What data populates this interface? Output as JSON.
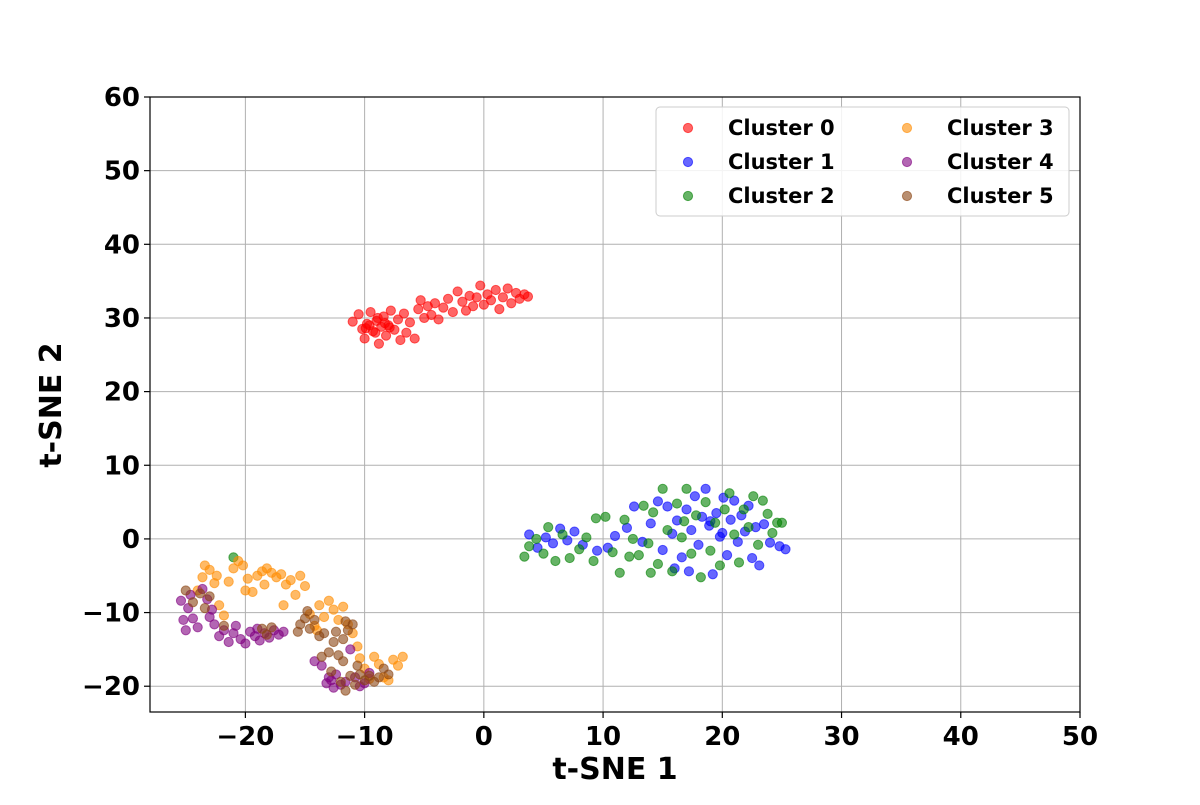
{
  "chart_data": {
    "type": "scatter",
    "title": "",
    "xlabel": "t-SNE 1",
    "ylabel": "t-SNE 2",
    "xlim": [
      -28,
      50
    ],
    "ylim": [
      -23.5,
      60
    ],
    "xticks": [
      -20,
      -10,
      0,
      10,
      20,
      30,
      40,
      50
    ],
    "yticks": [
      -20,
      -10,
      0,
      10,
      20,
      30,
      40,
      50,
      60
    ],
    "xtick_labels": [
      "−20",
      "−10",
      "0",
      "10",
      "20",
      "30",
      "40",
      "50"
    ],
    "ytick_labels": [
      "−20",
      "−10",
      "0",
      "10",
      "20",
      "30",
      "40",
      "50",
      "60"
    ],
    "grid": true,
    "legend_position": "top-right",
    "legend_columns": 2,
    "marker_alpha": 0.6,
    "series": [
      {
        "name": "Cluster 0",
        "color": "#ff0000",
        "points": [
          [
            -11.0,
            29.5
          ],
          [
            -10.5,
            30.5
          ],
          [
            -10.2,
            28.5
          ],
          [
            -10.0,
            27.2
          ],
          [
            -9.8,
            29.2
          ],
          [
            -9.5,
            30.8
          ],
          [
            -9.3,
            28.2
          ],
          [
            -9.0,
            29.6
          ],
          [
            -8.8,
            26.5
          ],
          [
            -8.6,
            28.8
          ],
          [
            -8.4,
            30.2
          ],
          [
            -8.2,
            27.6
          ],
          [
            -8.0,
            29.0
          ],
          [
            -7.8,
            31.0
          ],
          [
            -7.5,
            28.4
          ],
          [
            -7.2,
            29.8
          ],
          [
            -7.0,
            27.0
          ],
          [
            -6.7,
            30.6
          ],
          [
            -6.5,
            28.0
          ],
          [
            -6.2,
            29.4
          ],
          [
            -5.8,
            27.2
          ],
          [
            -5.5,
            31.2
          ],
          [
            -5.3,
            32.4
          ],
          [
            -5.0,
            30.0
          ],
          [
            -4.7,
            31.6
          ],
          [
            -4.4,
            30.4
          ],
          [
            -4.1,
            32.0
          ],
          [
            -3.8,
            29.8
          ],
          [
            -3.4,
            31.4
          ],
          [
            -3.0,
            32.6
          ],
          [
            -2.6,
            30.8
          ],
          [
            -2.2,
            33.6
          ],
          [
            -1.8,
            32.2
          ],
          [
            -1.5,
            31.0
          ],
          [
            -1.2,
            33.0
          ],
          [
            -0.9,
            31.6
          ],
          [
            -0.6,
            32.8
          ],
          [
            -0.3,
            34.4
          ],
          [
            0.0,
            31.8
          ],
          [
            0.3,
            33.2
          ],
          [
            0.6,
            32.4
          ],
          [
            1.0,
            33.8
          ],
          [
            1.3,
            31.2
          ],
          [
            1.6,
            32.8
          ],
          [
            2.0,
            34.0
          ],
          [
            2.3,
            32.0
          ],
          [
            2.7,
            33.4
          ],
          [
            3.0,
            32.6
          ],
          [
            3.4,
            33.2
          ],
          [
            3.7,
            32.9
          ],
          [
            -9.6,
            29.0
          ],
          [
            -9.1,
            28.0
          ],
          [
            -8.9,
            30.0
          ],
          [
            -8.3,
            29.3
          ],
          [
            -7.9,
            28.7
          ],
          [
            -9.9,
            28.6
          ]
        ]
      },
      {
        "name": "Cluster 1",
        "color": "#0000ff",
        "points": [
          [
            3.8,
            0.6
          ],
          [
            4.5,
            -1.2
          ],
          [
            5.2,
            0.2
          ],
          [
            5.8,
            -0.6
          ],
          [
            6.4,
            1.4
          ],
          [
            7.0,
            -0.2
          ],
          [
            7.6,
            1.0
          ],
          [
            8.3,
            -0.8
          ],
          [
            9.5,
            -1.6
          ],
          [
            10.4,
            -1.2
          ],
          [
            11.0,
            0.4
          ],
          [
            12.0,
            1.5
          ],
          [
            12.6,
            4.4
          ],
          [
            13.3,
            -0.4
          ],
          [
            14.0,
            2.1
          ],
          [
            14.6,
            5.1
          ],
          [
            15.0,
            -1.5
          ],
          [
            15.4,
            4.4
          ],
          [
            15.8,
            0.7
          ],
          [
            16.2,
            2.5
          ],
          [
            16.6,
            -2.5
          ],
          [
            17.0,
            4.0
          ],
          [
            17.4,
            1.2
          ],
          [
            17.7,
            5.8
          ],
          [
            18.0,
            -0.8
          ],
          [
            18.3,
            3.0
          ],
          [
            18.6,
            6.8
          ],
          [
            18.9,
            1.8
          ],
          [
            19.2,
            -4.8
          ],
          [
            19.5,
            3.5
          ],
          [
            19.8,
            0.3
          ],
          [
            20.1,
            5.6
          ],
          [
            20.4,
            -2.2
          ],
          [
            20.7,
            2.6
          ],
          [
            21.0,
            5.2
          ],
          [
            21.3,
            -0.4
          ],
          [
            21.6,
            3.2
          ],
          [
            21.9,
            1.0
          ],
          [
            22.2,
            4.5
          ],
          [
            22.5,
            -2.6
          ],
          [
            22.8,
            1.6
          ],
          [
            23.1,
            -3.6
          ],
          [
            23.5,
            2.0
          ],
          [
            24.0,
            -0.5
          ],
          [
            24.8,
            -1.0
          ],
          [
            25.3,
            -1.4
          ],
          [
            16.0,
            -4.0
          ],
          [
            17.2,
            -4.4
          ],
          [
            19.0,
            2.4
          ],
          [
            20.0,
            0.8
          ]
        ]
      },
      {
        "name": "Cluster 2",
        "color": "#008000",
        "points": [
          [
            -21.0,
            -2.5
          ],
          [
            3.4,
            -2.4
          ],
          [
            3.8,
            -1.0
          ],
          [
            4.4,
            0.0
          ],
          [
            5.0,
            -2.0
          ],
          [
            5.4,
            1.6
          ],
          [
            6.0,
            -3.0
          ],
          [
            6.6,
            0.6
          ],
          [
            7.2,
            -2.6
          ],
          [
            8.0,
            -1.4
          ],
          [
            8.6,
            0.2
          ],
          [
            9.2,
            -3.0
          ],
          [
            9.4,
            2.8
          ],
          [
            10.2,
            3.0
          ],
          [
            10.8,
            -1.8
          ],
          [
            11.4,
            -4.6
          ],
          [
            11.8,
            2.6
          ],
          [
            12.5,
            0.0
          ],
          [
            13.0,
            -2.2
          ],
          [
            13.4,
            4.5
          ],
          [
            13.8,
            -0.6
          ],
          [
            14.2,
            3.6
          ],
          [
            14.6,
            -3.4
          ],
          [
            15.0,
            6.8
          ],
          [
            15.4,
            1.2
          ],
          [
            15.8,
            -4.4
          ],
          [
            16.2,
            4.8
          ],
          [
            16.6,
            0.2
          ],
          [
            17.0,
            6.8
          ],
          [
            17.4,
            -2.0
          ],
          [
            17.8,
            3.2
          ],
          [
            18.2,
            -5.2
          ],
          [
            18.6,
            5.0
          ],
          [
            19.0,
            -1.6
          ],
          [
            19.4,
            2.2
          ],
          [
            19.8,
            -3.6
          ],
          [
            20.2,
            4.0
          ],
          [
            20.6,
            6.2
          ],
          [
            21.0,
            0.6
          ],
          [
            21.4,
            -3.2
          ],
          [
            21.8,
            4.0
          ],
          [
            22.2,
            1.6
          ],
          [
            22.6,
            5.8
          ],
          [
            23.0,
            -0.8
          ],
          [
            23.4,
            5.2
          ],
          [
            23.8,
            3.4
          ],
          [
            24.2,
            0.8
          ],
          [
            24.6,
            2.2
          ],
          [
            25.0,
            2.2
          ],
          [
            14.0,
            -4.6
          ],
          [
            12.2,
            -2.4
          ],
          [
            16.8,
            2.4
          ]
        ]
      },
      {
        "name": "Cluster 3",
        "color": "#ff8c00",
        "points": [
          [
            -24.0,
            -7.0
          ],
          [
            -23.6,
            -5.2
          ],
          [
            -23.4,
            -3.6
          ],
          [
            -23.0,
            -4.2
          ],
          [
            -22.6,
            -6.0
          ],
          [
            -22.2,
            -9.0
          ],
          [
            -21.8,
            -10.4
          ],
          [
            -21.4,
            -5.8
          ],
          [
            -21.0,
            -4.0
          ],
          [
            -20.6,
            -3.0
          ],
          [
            -20.2,
            -3.6
          ],
          [
            -19.8,
            -5.4
          ],
          [
            -19.4,
            -7.2
          ],
          [
            -19.0,
            -5.0
          ],
          [
            -18.6,
            -4.4
          ],
          [
            -18.2,
            -4.0
          ],
          [
            -17.8,
            -4.6
          ],
          [
            -17.4,
            -5.2
          ],
          [
            -17.0,
            -4.8
          ],
          [
            -16.6,
            -6.2
          ],
          [
            -16.2,
            -5.6
          ],
          [
            -15.8,
            -7.6
          ],
          [
            -15.4,
            -5.0
          ],
          [
            -15.0,
            -6.4
          ],
          [
            -14.6,
            -10.2
          ],
          [
            -14.2,
            -11.8
          ],
          [
            -13.8,
            -9.0
          ],
          [
            -13.4,
            -10.6
          ],
          [
            -13.0,
            -8.4
          ],
          [
            -12.6,
            -9.6
          ],
          [
            -12.2,
            -11.0
          ],
          [
            -11.8,
            -9.2
          ],
          [
            -11.4,
            -11.6
          ],
          [
            -11.0,
            -12.8
          ],
          [
            -10.6,
            -14.6
          ],
          [
            -10.4,
            -16.2
          ],
          [
            -10.0,
            -17.6
          ],
          [
            -9.6,
            -19.0
          ],
          [
            -9.2,
            -16.0
          ],
          [
            -8.8,
            -17.0
          ],
          [
            -8.4,
            -18.8
          ],
          [
            -8.0,
            -19.2
          ],
          [
            -7.6,
            -16.4
          ],
          [
            -7.2,
            -17.2
          ],
          [
            -6.8,
            -16.0
          ],
          [
            -16.8,
            -9.0
          ],
          [
            -22.4,
            -5.0
          ],
          [
            -20.0,
            -7.0
          ],
          [
            -18.4,
            -6.2
          ],
          [
            -14.0,
            -12.4
          ]
        ]
      },
      {
        "name": "Cluster 4",
        "color": "#800080",
        "points": [
          [
            -25.4,
            -8.4
          ],
          [
            -25.2,
            -11.0
          ],
          [
            -25.0,
            -12.4
          ],
          [
            -24.8,
            -9.4
          ],
          [
            -24.4,
            -10.8
          ],
          [
            -24.0,
            -12.0
          ],
          [
            -23.6,
            -6.8
          ],
          [
            -23.2,
            -8.2
          ],
          [
            -23.0,
            -10.6
          ],
          [
            -22.6,
            -11.6
          ],
          [
            -22.2,
            -13.2
          ],
          [
            -21.8,
            -12.4
          ],
          [
            -21.4,
            -14.0
          ],
          [
            -20.8,
            -11.8
          ],
          [
            -20.4,
            -13.6
          ],
          [
            -20.0,
            -14.2
          ],
          [
            -19.6,
            -12.6
          ],
          [
            -19.2,
            -13.2
          ],
          [
            -18.8,
            -13.8
          ],
          [
            -18.4,
            -12.8
          ],
          [
            -18.0,
            -13.4
          ],
          [
            -17.6,
            -12.4
          ],
          [
            -17.2,
            -13.0
          ],
          [
            -16.8,
            -12.6
          ],
          [
            -14.2,
            -16.6
          ],
          [
            -13.6,
            -17.2
          ],
          [
            -13.2,
            -19.6
          ],
          [
            -12.8,
            -19.2
          ],
          [
            -12.4,
            -18.4
          ],
          [
            -12.0,
            -19.8
          ],
          [
            -11.6,
            -19.4
          ],
          [
            -11.2,
            -15.0
          ],
          [
            -10.8,
            -18.8
          ],
          [
            -10.4,
            -20.0
          ],
          [
            -10.0,
            -19.6
          ],
          [
            -9.6,
            -18.2
          ],
          [
            -12.6,
            -20.2
          ],
          [
            -24.6,
            -7.6
          ],
          [
            -22.8,
            -9.6
          ],
          [
            -21.0,
            -12.8
          ],
          [
            -19.0,
            -12.2
          ],
          [
            -13.0,
            -18.8
          ]
        ]
      },
      {
        "name": "Cluster 5",
        "color": "#8b4513",
        "points": [
          [
            -25.0,
            -7.0
          ],
          [
            -24.4,
            -8.6
          ],
          [
            -23.8,
            -7.4
          ],
          [
            -23.4,
            -9.4
          ],
          [
            -23.0,
            -7.8
          ],
          [
            -21.8,
            -11.8
          ],
          [
            -18.6,
            -12.2
          ],
          [
            -18.2,
            -13.0
          ],
          [
            -17.8,
            -12.0
          ],
          [
            -15.6,
            -12.6
          ],
          [
            -15.4,
            -11.6
          ],
          [
            -15.0,
            -10.8
          ],
          [
            -14.6,
            -12.2
          ],
          [
            -14.2,
            -11.0
          ],
          [
            -13.8,
            -13.2
          ],
          [
            -13.4,
            -12.8
          ],
          [
            -13.0,
            -15.4
          ],
          [
            -12.6,
            -14.0
          ],
          [
            -12.2,
            -15.8
          ],
          [
            -11.8,
            -13.6
          ],
          [
            -11.4,
            -12.4
          ],
          [
            -11.0,
            -11.6
          ],
          [
            -11.6,
            -11.2
          ],
          [
            -12.0,
            -19.4
          ],
          [
            -11.6,
            -20.6
          ],
          [
            -11.2,
            -18.6
          ],
          [
            -10.8,
            -19.8
          ],
          [
            -10.4,
            -18.4
          ],
          [
            -10.0,
            -19.2
          ],
          [
            -9.6,
            -18.6
          ],
          [
            -9.2,
            -19.4
          ],
          [
            -8.8,
            -18.8
          ],
          [
            -8.4,
            -17.6
          ],
          [
            -8.0,
            -18.4
          ],
          [
            -13.6,
            -16.0
          ],
          [
            -12.8,
            -18.0
          ],
          [
            -14.8,
            -9.8
          ],
          [
            -11.8,
            -16.6
          ],
          [
            -10.6,
            -17.2
          ],
          [
            -12.4,
            -12.6
          ]
        ]
      }
    ]
  }
}
